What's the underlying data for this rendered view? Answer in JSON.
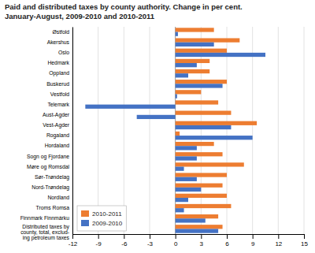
{
  "chart_data": {
    "type": "bar",
    "orientation": "horizontal",
    "title": "Paid and distributed taxes by county authority. Change in per cent.\nJanuary-August, 2009-2010 and 2010-2011",
    "categories": [
      "Østfold",
      "Akershus",
      "Oslo",
      "Hedmark",
      "Oppland",
      "Buskerud",
      "Vestfold",
      "Telemark",
      "Aust-Agder",
      "Vest-Agder",
      "Rogaland",
      "Hordaland",
      "Sogn og Fjordane",
      "Møre og Romsdal",
      "Sør-Trøndelag",
      "Nord-Trøndelag",
      "Nordland",
      "Troms Romsa",
      "Finnmark Finnmárku",
      "Distributed taxes by\ncounty, total, exclud-\ning petroleum taxes"
    ],
    "series": [
      {
        "name": "2010-2011",
        "color": "#ED7D31",
        "values": [
          4.5,
          7.5,
          6.0,
          4.0,
          4.0,
          6.0,
          3.0,
          5.0,
          6.5,
          9.5,
          0.5,
          4.5,
          5.5,
          8.0,
          6.0,
          5.5,
          6.0,
          6.5,
          5.0,
          5.5
        ]
      },
      {
        "name": "2009-2010",
        "color": "#4472C4",
        "values": [
          0.3,
          4.5,
          10.5,
          2.5,
          1.5,
          5.5,
          0.2,
          -10.5,
          -4.5,
          6.5,
          9.0,
          2.5,
          2.5,
          1.0,
          2.5,
          3.0,
          1.5,
          1.0,
          3.5,
          5.0
        ]
      }
    ],
    "xlim": [
      -12,
      15
    ],
    "xticks": [
      -12,
      -9,
      -6,
      -3,
      0,
      3,
      6,
      9,
      12,
      15
    ],
    "grid": true,
    "legend": "lower left"
  }
}
